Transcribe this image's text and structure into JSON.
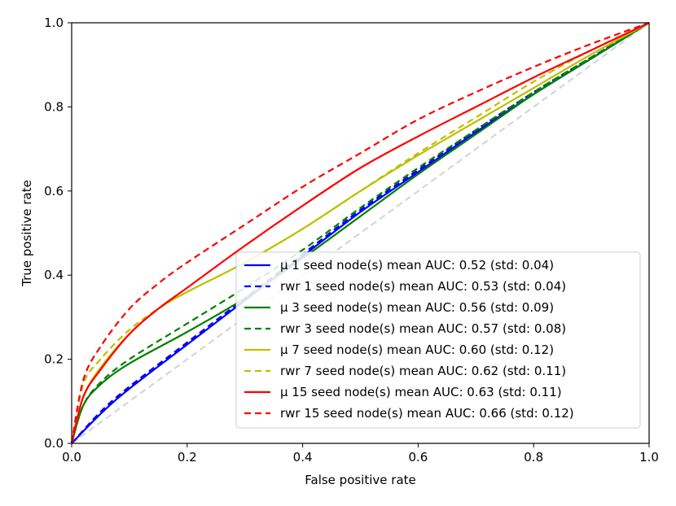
{
  "chart_data": {
    "type": "line",
    "title": "",
    "xlabel": "False positive rate",
    "ylabel": "True positive rate",
    "xlim": [
      0.0,
      1.0
    ],
    "ylim": [
      0.0,
      1.0
    ],
    "grid": false,
    "legend_position": "lower-right",
    "xticks": [
      "0.0",
      "0.2",
      "0.4",
      "0.6",
      "0.8",
      "1.0"
    ],
    "yticks": [
      "0.0",
      "0.2",
      "0.4",
      "0.6",
      "0.8",
      "1.0"
    ],
    "reference_line": {
      "name": "chance",
      "color": "#d3d3d3",
      "dash": "dashed",
      "x": [
        0,
        1
      ],
      "y": [
        0,
        1
      ]
    },
    "series": [
      {
        "name": "μ 1 seed node(s) mean AUC: 0.52 (std: 0.04)",
        "color": "#0000ff",
        "dash": "solid",
        "x": [
          0,
          0.05,
          0.1,
          0.2,
          0.3,
          0.4,
          0.5,
          0.6,
          0.7,
          0.8,
          0.9,
          1.0
        ],
        "y": [
          0,
          0.07,
          0.13,
          0.235,
          0.34,
          0.445,
          0.55,
          0.645,
          0.74,
          0.83,
          0.915,
          1.0
        ]
      },
      {
        "name": "rwr 1 seed node(s) mean AUC: 0.53 (std: 0.04)",
        "color": "#0000ff",
        "dash": "dashed",
        "x": [
          0,
          0.05,
          0.1,
          0.2,
          0.3,
          0.4,
          0.5,
          0.6,
          0.7,
          0.8,
          0.9,
          1.0
        ],
        "y": [
          0,
          0.075,
          0.135,
          0.24,
          0.345,
          0.45,
          0.555,
          0.65,
          0.745,
          0.835,
          0.918,
          1.0
        ]
      },
      {
        "name": "μ 3 seed node(s) mean AUC: 0.56 (std: 0.09)",
        "color": "#008000",
        "dash": "solid",
        "x": [
          0,
          0.02,
          0.05,
          0.1,
          0.2,
          0.3,
          0.4,
          0.5,
          0.6,
          0.7,
          0.8,
          0.9,
          1.0
        ],
        "y": [
          0,
          0.09,
          0.14,
          0.19,
          0.265,
          0.345,
          0.44,
          0.54,
          0.64,
          0.735,
          0.83,
          0.915,
          1.0
        ]
      },
      {
        "name": "rwr 3 seed node(s) mean AUC: 0.57 (std: 0.08)",
        "color": "#008000",
        "dash": "dashed",
        "x": [
          0,
          0.02,
          0.05,
          0.1,
          0.2,
          0.3,
          0.4,
          0.5,
          0.6,
          0.7,
          0.8,
          0.9,
          1.0
        ],
        "y": [
          0,
          0.09,
          0.145,
          0.2,
          0.285,
          0.37,
          0.46,
          0.56,
          0.655,
          0.745,
          0.835,
          0.918,
          1.0
        ]
      },
      {
        "name": "μ 7 seed node(s) mean AUC: 0.60 (std: 0.12)",
        "color": "#bfbf00",
        "dash": "solid",
        "x": [
          0,
          0.02,
          0.05,
          0.1,
          0.15,
          0.2,
          0.3,
          0.4,
          0.5,
          0.6,
          0.7,
          0.8,
          0.9,
          1.0
        ],
        "y": [
          0,
          0.11,
          0.18,
          0.26,
          0.32,
          0.36,
          0.43,
          0.51,
          0.6,
          0.685,
          0.765,
          0.845,
          0.925,
          1.0
        ]
      },
      {
        "name": "rwr 7 seed node(s) mean AUC: 0.62 (std: 0.11)",
        "color": "#bfbf00",
        "dash": "dashed",
        "x": [
          0,
          0.02,
          0.05,
          0.1,
          0.15,
          0.2,
          0.3,
          0.4,
          0.5,
          0.6,
          0.7,
          0.8,
          0.9,
          1.0
        ],
        "y": [
          0,
          0.14,
          0.2,
          0.27,
          0.32,
          0.36,
          0.43,
          0.51,
          0.6,
          0.69,
          0.775,
          0.86,
          0.935,
          1.0
        ]
      },
      {
        "name": "μ 15 seed node(s) mean AUC: 0.63 (std: 0.11)",
        "color": "#ff0000",
        "dash": "solid",
        "x": [
          0,
          0.02,
          0.05,
          0.1,
          0.15,
          0.2,
          0.3,
          0.4,
          0.5,
          0.6,
          0.7,
          0.8,
          0.9,
          1.0
        ],
        "y": [
          0,
          0.11,
          0.175,
          0.26,
          0.32,
          0.37,
          0.47,
          0.565,
          0.655,
          0.73,
          0.8,
          0.87,
          0.935,
          1.0
        ]
      },
      {
        "name": "rwr 15 seed node(s) mean AUC: 0.66 (std: 0.12)",
        "color": "#ff0000",
        "dash": "dashed",
        "x": [
          0,
          0.02,
          0.05,
          0.1,
          0.15,
          0.2,
          0.3,
          0.4,
          0.5,
          0.6,
          0.7,
          0.8,
          0.9,
          1.0
        ],
        "y": [
          0,
          0.15,
          0.23,
          0.32,
          0.38,
          0.43,
          0.52,
          0.61,
          0.69,
          0.77,
          0.835,
          0.895,
          0.95,
          1.0
        ]
      }
    ]
  }
}
